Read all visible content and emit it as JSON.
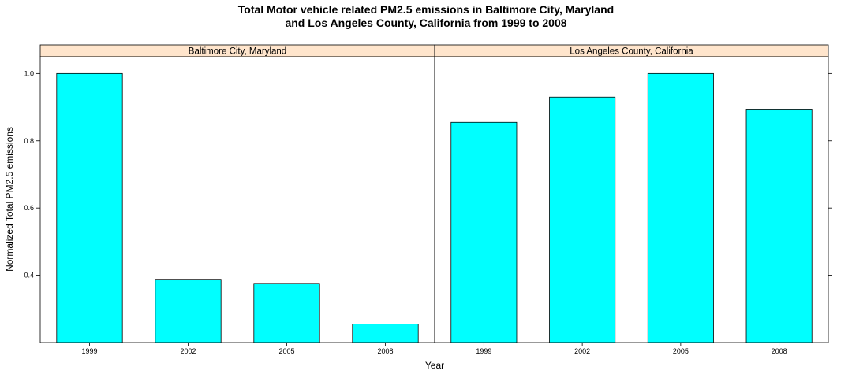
{
  "chart_data": {
    "type": "bar",
    "title_lines": [
      "Total Motor vehicle related PM2.5 emissions in Baltimore City, Maryland",
      "and Los Angeles County, California from 1999 to 2008"
    ],
    "xlabel": "Year",
    "ylabel": "Normalized Total PM2.5 emissions",
    "ylim": [
      0.2,
      1.05
    ],
    "yticks": [
      0.4,
      0.6,
      0.8,
      1.0
    ],
    "ytick_labels": [
      "0.4",
      "0.6",
      "0.8",
      "1.0"
    ],
    "categories": [
      "1999",
      "2002",
      "2005",
      "2008"
    ],
    "panels": [
      {
        "name": "Baltimore City, Maryland",
        "values": [
          1.0,
          0.388,
          0.376,
          0.255
        ]
      },
      {
        "name": "Los Angeles County, California",
        "values": [
          0.855,
          0.93,
          1.0,
          0.892
        ]
      }
    ],
    "bar_color": "#00ffff",
    "strip_color": "#ffe5cc",
    "grid": false
  }
}
